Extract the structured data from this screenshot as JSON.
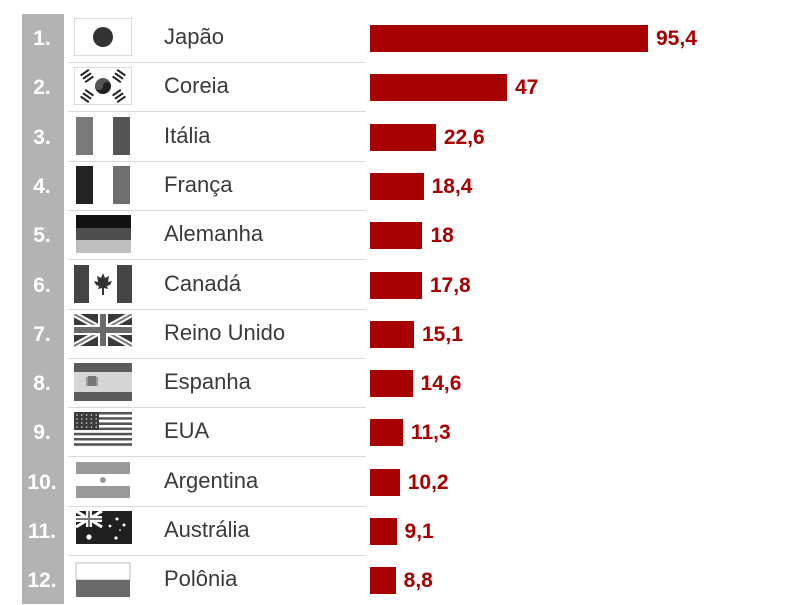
{
  "chart_data": {
    "type": "bar",
    "orientation": "horizontal",
    "title": "",
    "xlabel": "",
    "ylabel": "",
    "grid": false,
    "legend": "none",
    "bar_color": "#a80000",
    "rank_bg_color": "#b3b3b3",
    "categories": [
      "Japão",
      "Coreia",
      "Itália",
      "França",
      "Alemanha",
      "Canadá",
      "Reino Unido",
      "Espanha",
      "EUA",
      "Argentina",
      "Austrália",
      "Polônia"
    ],
    "values": [
      95.4,
      47,
      22.6,
      18.4,
      18,
      17.8,
      15.1,
      14.6,
      11.3,
      10.2,
      9.1,
      8.8
    ],
    "value_labels": [
      "95,4",
      "47",
      "22,6",
      "18,4",
      "18",
      "17,8",
      "15,1",
      "14,6",
      "11,3",
      "10,2",
      "9,1",
      "8,8"
    ],
    "ranks": [
      "1.",
      "2.",
      "3.",
      "4.",
      "5.",
      "6.",
      "7.",
      "8.",
      "9.",
      "10.",
      "11.",
      "12."
    ],
    "flags": [
      "japan-flag",
      "south-korea-flag",
      "italy-flag",
      "france-flag",
      "germany-flag",
      "canada-flag",
      "united-kingdom-flag",
      "spain-flag",
      "usa-flag",
      "argentina-flag",
      "australia-flag",
      "poland-flag"
    ],
    "xlim": [
      0,
      95.4
    ]
  }
}
